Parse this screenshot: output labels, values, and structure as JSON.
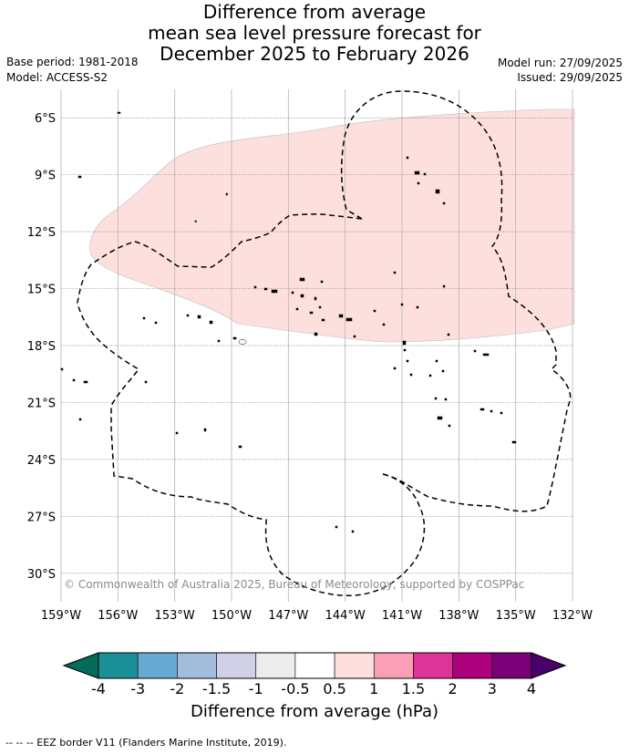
{
  "title": {
    "line1": "Difference from average",
    "line2": "mean sea level pressure forecast for",
    "line3": "December 2025 to February 2026"
  },
  "meta": {
    "base_period": "Base period: 1981-2018",
    "model": "Model: ACCESS-S2",
    "model_run": "Model run: 27/09/2025",
    "issued": "Issued: 29/09/2025"
  },
  "map": {
    "lon_range": [
      -159,
      -132
    ],
    "lat_range": [
      -31.5,
      -4.5
    ],
    "lon_ticks": [
      "159°W",
      "156°W",
      "153°W",
      "150°W",
      "147°W",
      "144°W",
      "141°W",
      "138°W",
      "135°W",
      "132°W"
    ],
    "lat_ticks": [
      "6°S",
      "9°S",
      "12°S",
      "15°S",
      "18°S",
      "21°S",
      "24°S",
      "27°S",
      "30°S"
    ],
    "anomaly_region_category": "0.5 to 1",
    "anomaly_color": "#fde0dd",
    "gridlines": true,
    "eez_border_style": "dashed"
  },
  "copyright": "© Commonwealth of Australia 2025, Bureau of Meteorology, supported by COSPPac",
  "colorbar": {
    "label": "Difference from average (hPa)",
    "ticks": [
      "-4",
      "-3",
      "-2",
      "-1.5",
      "-1",
      "-0.5",
      "0.5",
      "1",
      "1.5",
      "2",
      "3",
      "4"
    ],
    "colors": [
      "#1a9096",
      "#66aad1",
      "#a4bddd",
      "#d0d1e6",
      "#ececec",
      "#ffffff",
      "#fde0dd",
      "#fa9fb5",
      "#dd3497",
      "#ae017e",
      "#7a0177"
    ],
    "under_color": "#016c59",
    "over_color": "#49006a"
  },
  "footnote": "-- -- -- EEZ border V11 (Flanders Marine Institute, 2019)."
}
